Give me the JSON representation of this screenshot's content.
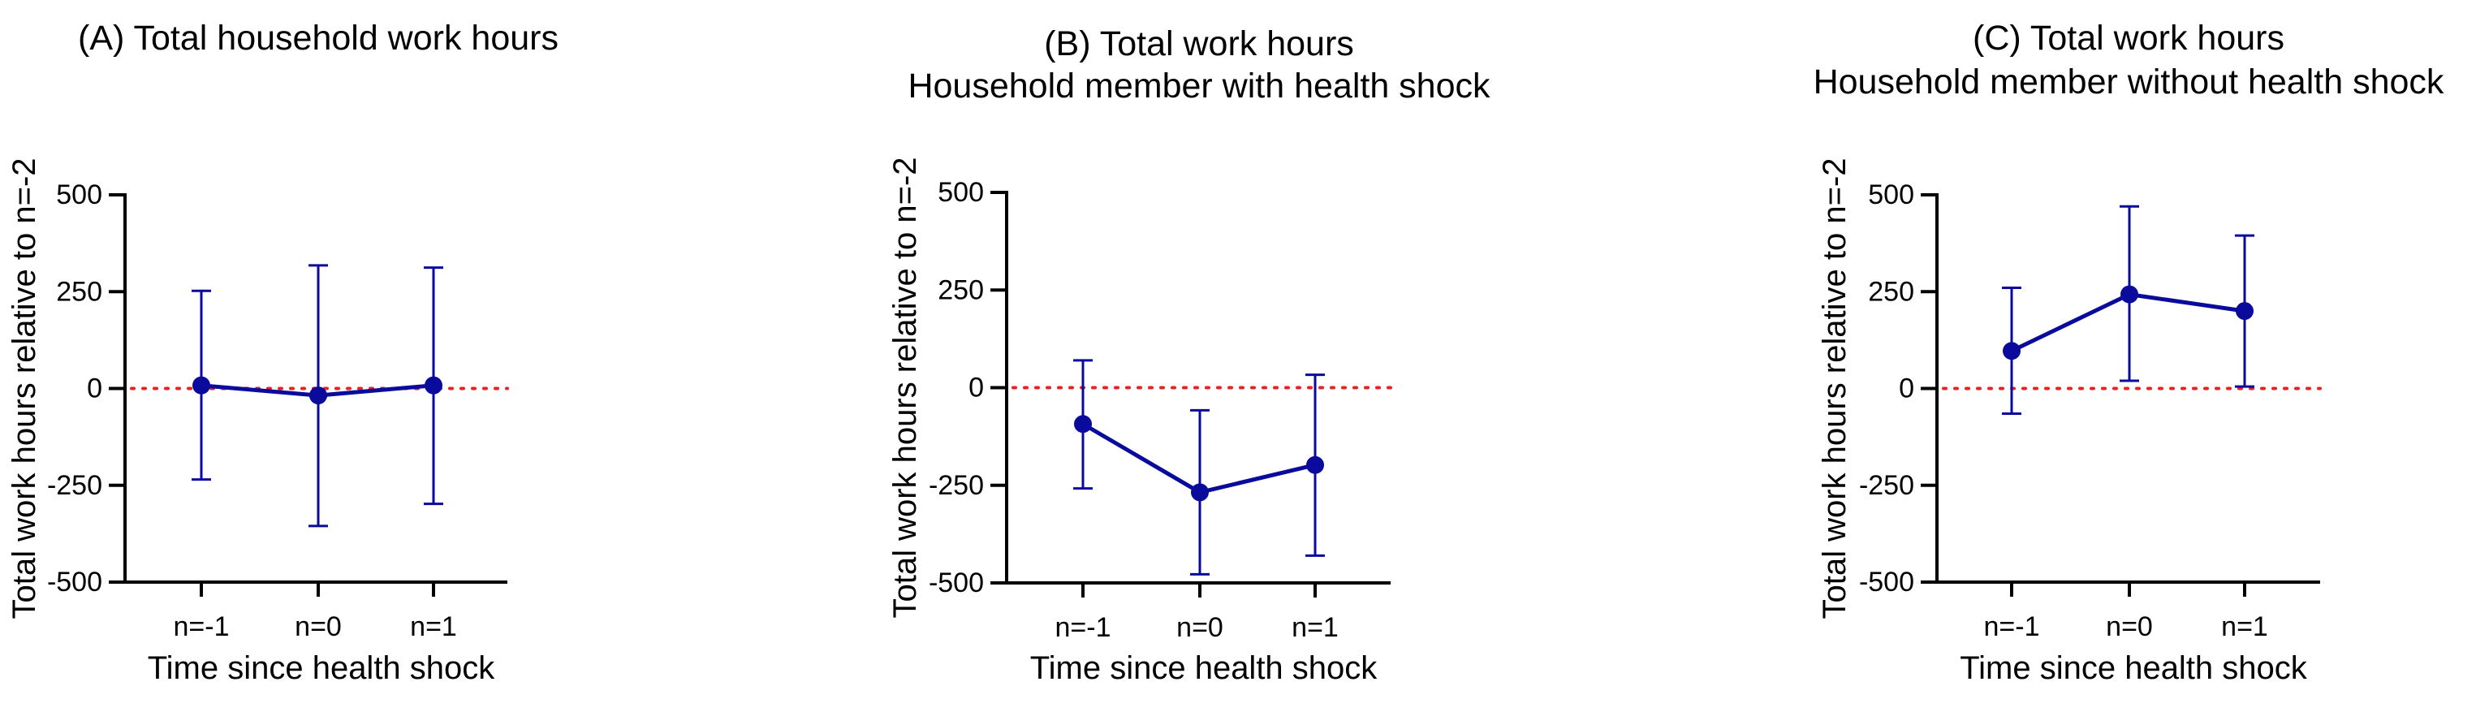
{
  "colors": {
    "series": "#0a0a9c",
    "reference_line": "#e8231f",
    "axis": "#000000"
  },
  "chart_data": [
    {
      "type": "line",
      "title_lines": [
        "(A) Total household work hours"
      ],
      "xlabel": "Time since health shock",
      "ylabel": "Total work hours relative to n=-2",
      "categories": [
        "n=-1",
        "n=0",
        "n=1"
      ],
      "ylim": [
        -500,
        500
      ],
      "yticks": [
        500,
        250,
        0,
        -250,
        -500
      ],
      "reference_line_y": 0,
      "series": [
        {
          "values": [
            8,
            -18,
            8
          ],
          "ci_low": [
            -235,
            -355,
            -298
          ],
          "ci_high": [
            252,
            318,
            312
          ]
        }
      ],
      "grid": false,
      "legend": "none"
    },
    {
      "type": "line",
      "title_lines": [
        "(B) Total work hours",
        "Household member with health shock"
      ],
      "xlabel": "Time since health shock",
      "ylabel": "Total work hours relative to n=-2",
      "categories": [
        "n=-1",
        "n=0",
        "n=1"
      ],
      "ylim": [
        -500,
        500
      ],
      "yticks": [
        500,
        250,
        0,
        -250,
        -500
      ],
      "reference_line_y": 0,
      "series": [
        {
          "values": [
            -93,
            -268,
            -198
          ],
          "ci_low": [
            -258,
            -478,
            -430
          ],
          "ci_high": [
            70,
            -58,
            33
          ]
        }
      ],
      "grid": false,
      "legend": "none"
    },
    {
      "type": "line",
      "title_lines": [
        "(C) Total work hours",
        "Household member without health shock"
      ],
      "xlabel": "Time since health shock",
      "ylabel": "Total work hours relative to n=-2",
      "categories": [
        "n=-1",
        "n=0",
        "n=1"
      ],
      "ylim": [
        -500,
        500
      ],
      "yticks": [
        500,
        250,
        0,
        -250,
        -500
      ],
      "reference_line_y": 0,
      "series": [
        {
          "values": [
            97,
            243,
            200
          ],
          "ci_low": [
            -65,
            20,
            5
          ],
          "ci_high": [
            260,
            470,
            395
          ]
        }
      ],
      "grid": false,
      "legend": "none"
    }
  ]
}
